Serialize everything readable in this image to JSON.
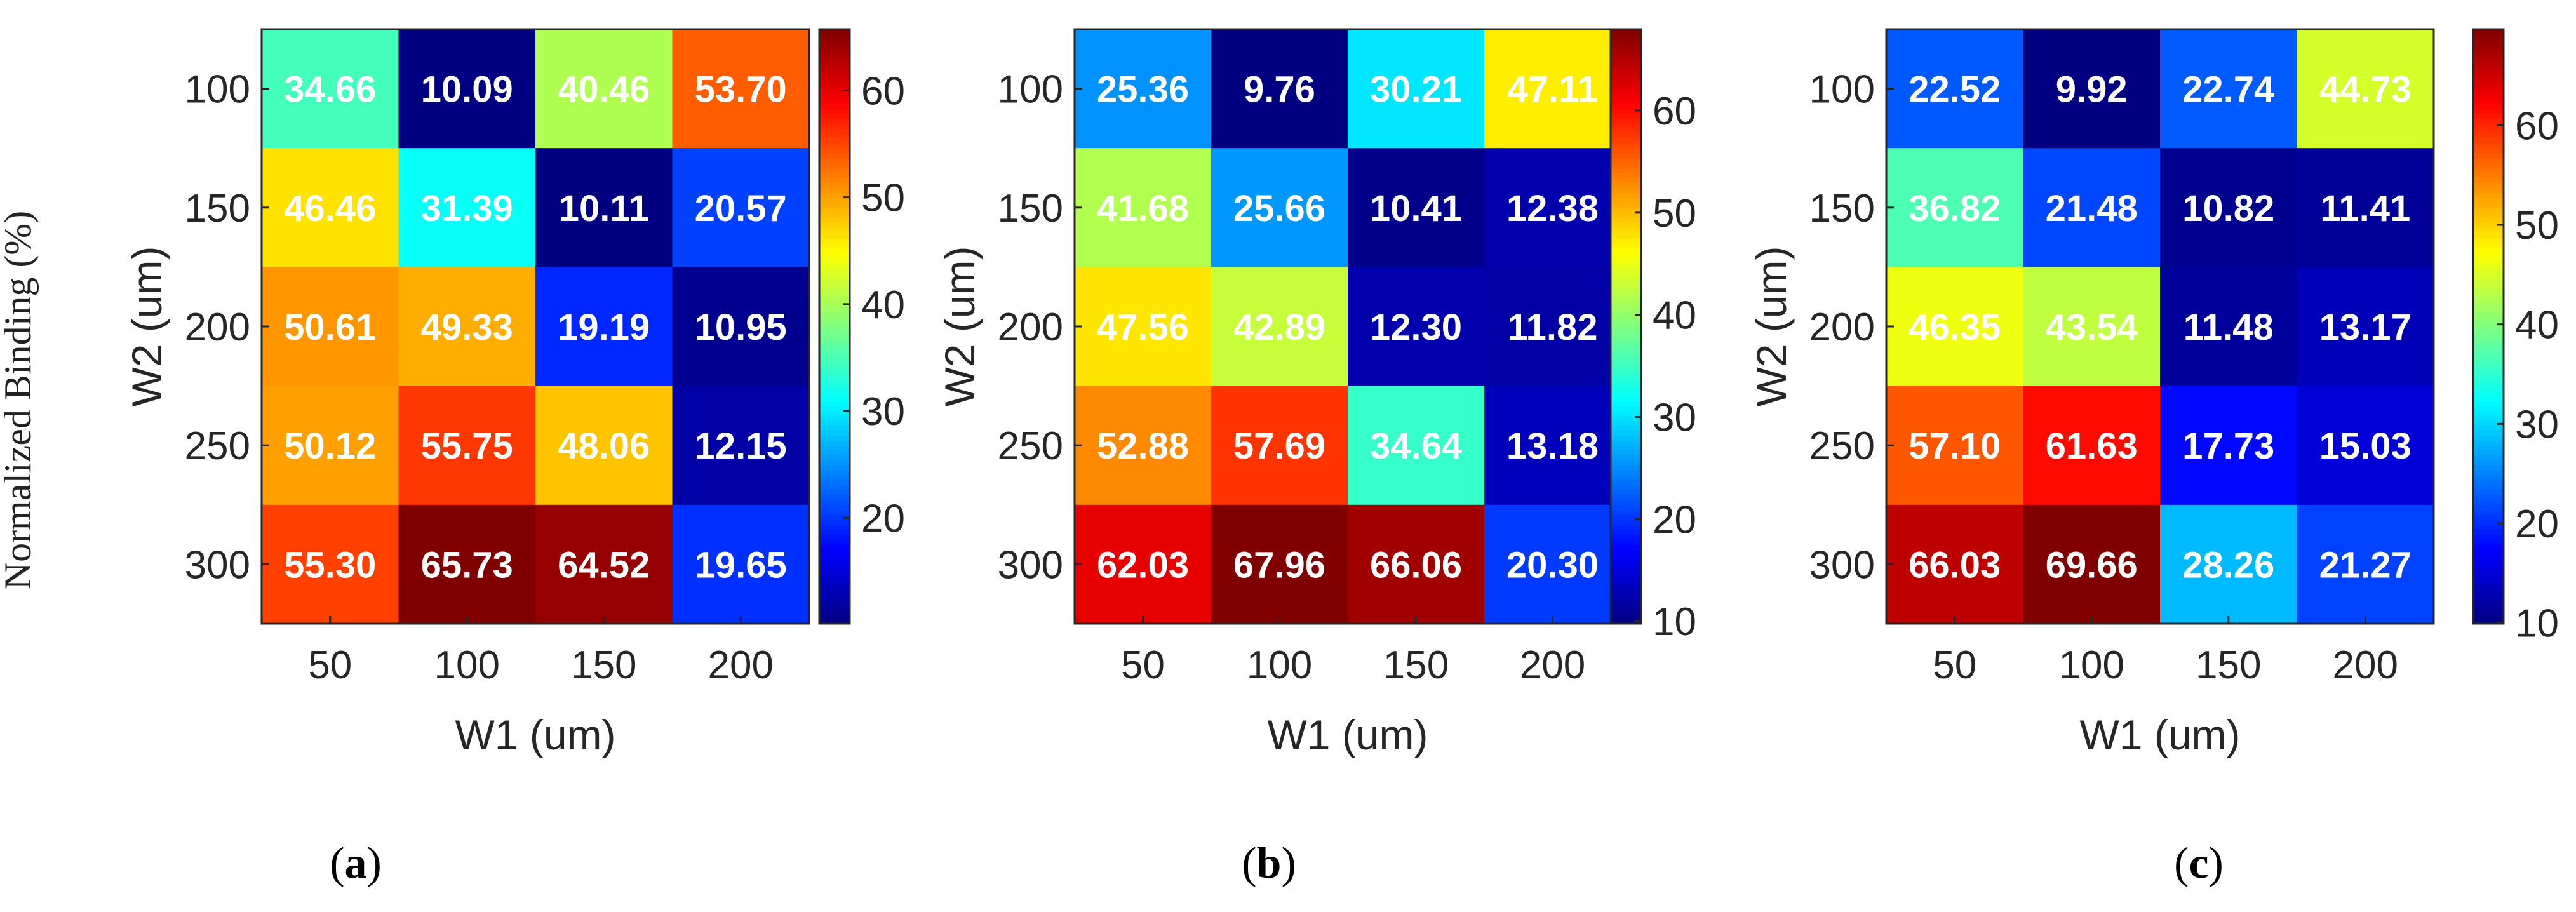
{
  "side_label": "Normalized Binding (%)",
  "chart_data": [
    {
      "type": "heatmap",
      "panel": "a",
      "xlabel": "W1 (um)",
      "ylabel": "W2 (um)",
      "x": [
        "50",
        "100",
        "150",
        "200"
      ],
      "y": [
        "100",
        "150",
        "200",
        "250",
        "300"
      ],
      "values": [
        [
          34.66,
          10.09,
          40.46,
          53.7
        ],
        [
          46.46,
          31.39,
          10.11,
          20.57
        ],
        [
          50.61,
          49.33,
          19.19,
          10.95
        ],
        [
          50.12,
          55.75,
          48.06,
          12.15
        ],
        [
          55.3,
          65.73,
          64.52,
          19.65
        ]
      ],
      "cell_text": [
        [
          "34.66",
          "10.09",
          "40.46",
          "53.70"
        ],
        [
          "46.46",
          "31.39",
          "10.11",
          "20.57"
        ],
        [
          "50.61",
          "49.33",
          "19.19",
          "10.95"
        ],
        [
          "50.12",
          "55.75",
          "48.06",
          "12.15"
        ],
        [
          "55.30",
          "65.73",
          "64.52",
          "19.65"
        ]
      ],
      "colormap": "jet",
      "clim": [
        10.09,
        65.73
      ],
      "colorbar_ticks": [
        "20",
        "30",
        "40",
        "50",
        "60"
      ],
      "colorbar_tick_values": [
        20,
        30,
        40,
        50,
        60
      ]
    },
    {
      "type": "heatmap",
      "panel": "b",
      "xlabel": "W1 (um)",
      "ylabel": "W2 (um)",
      "x": [
        "50",
        "100",
        "150",
        "200"
      ],
      "y": [
        "100",
        "150",
        "200",
        "250",
        "300"
      ],
      "values": [
        [
          25.36,
          9.76,
          30.21,
          47.11
        ],
        [
          41.68,
          25.66,
          10.41,
          12.38
        ],
        [
          47.56,
          42.89,
          12.3,
          11.82
        ],
        [
          52.88,
          57.69,
          34.64,
          13.18
        ],
        [
          62.03,
          67.96,
          66.06,
          20.3
        ]
      ],
      "cell_text": [
        [
          "25.36",
          "9.76",
          "30.21",
          "47.11"
        ],
        [
          "41.68",
          "25.66",
          "10.41",
          "12.38"
        ],
        [
          "47.56",
          "42.89",
          "12.30",
          "11.82"
        ],
        [
          "52.88",
          "57.69",
          "34.64",
          "13.18"
        ],
        [
          "62.03",
          "67.96",
          "66.06",
          "20.30"
        ]
      ],
      "colormap": "jet",
      "clim": [
        9.76,
        67.96
      ],
      "colorbar_ticks": [
        "10",
        "20",
        "30",
        "40",
        "50",
        "60"
      ],
      "colorbar_tick_values": [
        10,
        20,
        30,
        40,
        50,
        60
      ]
    },
    {
      "type": "heatmap",
      "panel": "c",
      "xlabel": "W1 (um)",
      "ylabel": "W2 (um)",
      "x": [
        "50",
        "100",
        "150",
        "200"
      ],
      "y": [
        "100",
        "150",
        "200",
        "250",
        "300"
      ],
      "values": [
        [
          22.52,
          9.92,
          22.74,
          44.73
        ],
        [
          36.82,
          21.48,
          10.82,
          11.41
        ],
        [
          46.35,
          43.54,
          11.48,
          13.17
        ],
        [
          57.1,
          61.63,
          17.73,
          15.03
        ],
        [
          66.03,
          69.66,
          28.26,
          21.27
        ]
      ],
      "cell_text": [
        [
          "22.52",
          "9.92",
          "22.74",
          "44.73"
        ],
        [
          "36.82",
          "21.48",
          "10.82",
          "11.41"
        ],
        [
          "46.35",
          "43.54",
          "11.48",
          "13.17"
        ],
        [
          "57.10",
          "61.63",
          "17.73",
          "15.03"
        ],
        [
          "66.03",
          "69.66",
          "28.26",
          "21.27"
        ]
      ],
      "colormap": "jet",
      "clim": [
        9.92,
        69.66
      ],
      "colorbar_ticks": [
        "10",
        "20",
        "30",
        "40",
        "50",
        "60"
      ],
      "colorbar_tick_values": [
        10,
        20,
        30,
        40,
        50,
        60
      ]
    }
  ],
  "panel_labels": [
    {
      "open": "(",
      "letter": "a",
      "close": ")"
    },
    {
      "open": "(",
      "letter": "b",
      "close": ")"
    },
    {
      "open": "(",
      "letter": "c",
      "close": ")"
    }
  ]
}
